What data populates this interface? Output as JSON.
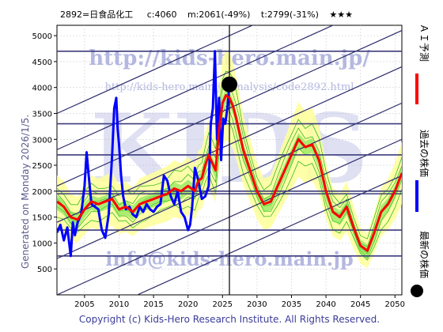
{
  "header": {
    "code_name": "2892=日食品化工",
    "current": "c:4060",
    "min": "m:2061(-49%)",
    "target": "t:2799(-31%)",
    "stars": "★★★"
  },
  "generated_label": "Generated on Monday 2026/1/5.",
  "watermark": {
    "url_top": "http://kids-hero.main.jp/",
    "url_mid": "http://kids-hero.main.jp/analysis/code2892.html",
    "big_text": "KIDS",
    "email": "info@kids-hero.main.jp"
  },
  "copyright": "Copyright (c) Kids-Hero Research Institute. All Rights Reserved.",
  "legend": {
    "ai_forecast": "ＡＩ予測",
    "past_price": "過去の株価",
    "latest_price": "最新の株価"
  },
  "colors": {
    "ai_forecast": "#ff0000",
    "past_price": "#0000ff",
    "band_fill": "#ffff99",
    "band_lines": "#00aa00",
    "green_fill": "#66dd44",
    "diagonal": "#2c2c6c",
    "horizontal": "#3c3c7c",
    "latest_marker": "#000000"
  },
  "chart_data": {
    "type": "line",
    "xlim": [
      2001,
      2051
    ],
    "ylim": [
      0,
      5200
    ],
    "x_ticks": [
      2005,
      2010,
      2015,
      2020,
      2025,
      2030,
      2035,
      2040,
      2045,
      2050
    ],
    "y_ticks": [
      500,
      1000,
      1500,
      2000,
      2500,
      3000,
      3500,
      4000,
      4500,
      5000
    ],
    "horizontal_levels": [
      4700,
      3300,
      2700,
      2000,
      1950,
      1250,
      750
    ],
    "current_year_line": 2026,
    "latest_point": {
      "x": 2026.0,
      "y": 4060
    },
    "series": [
      {
        "name": "過去の株価",
        "x": [
          2001,
          2001.5,
          2002,
          2002.5,
          2003,
          2003.3,
          2003.6,
          2004,
          2004.5,
          2005,
          2005.3,
          2005.6,
          2006,
          2006.5,
          2007,
          2007.5,
          2008,
          2008.5,
          2009,
          2009.3,
          2009.6,
          2009.8,
          2010,
          2010.3,
          2010.6,
          2011,
          2011.5,
          2012,
          2012.5,
          2013,
          2013.5,
          2014,
          2014.5,
          2015,
          2015.5,
          2016,
          2016.5,
          2017,
          2017.5,
          2018,
          2018.5,
          2019,
          2019.5,
          2020,
          2020.3,
          2020.6,
          2021,
          2021.5,
          2022,
          2022.5,
          2023,
          2023.3,
          2023.6,
          2023.9,
          2024.2,
          2024.5,
          2024.8,
          2025.1,
          2025.4,
          2025.7,
          2026
        ],
        "values": [
          1200,
          1350,
          1050,
          1300,
          750,
          1400,
          1150,
          1400,
          1550,
          2100,
          2750,
          2300,
          1750,
          1700,
          1650,
          1250,
          1100,
          1550,
          2700,
          3600,
          3800,
          3200,
          2900,
          2300,
          1900,
          1650,
          1700,
          1550,
          1500,
          1700,
          1600,
          1750,
          1650,
          1600,
          1700,
          1750,
          2300,
          2200,
          1900,
          1750,
          2000,
          1600,
          1500,
          1250,
          1350,
          1700,
          2450,
          2200,
          1850,
          1900,
          2100,
          3300,
          3600,
          4700,
          3000,
          3800,
          2600,
          3400,
          3300,
          3600,
          4060
        ]
      },
      {
        "name": "ＡＩ予測",
        "x": [
          2001,
          2002,
          2003,
          2004,
          2005,
          2006,
          2007,
          2008,
          2009,
          2010,
          2011,
          2012,
          2013,
          2014,
          2015,
          2016,
          2017,
          2018,
          2019,
          2020,
          2021,
          2021.5,
          2022,
          2022.5,
          2023,
          2023.5,
          2024,
          2024.5,
          2025,
          2025.5,
          2026,
          2026.5,
          2027,
          2027.5,
          2028,
          2029,
          2030,
          2031,
          2032,
          2033,
          2034,
          2035,
          2036,
          2037,
          2038,
          2039,
          2040,
          2041,
          2042,
          2043,
          2044,
          2045,
          2046,
          2047,
          2048,
          2049,
          2050,
          2051
        ],
        "values": [
          1800,
          1700,
          1500,
          1450,
          1650,
          1800,
          1750,
          1800,
          1850,
          1650,
          1700,
          1600,
          1750,
          1800,
          1850,
          1900,
          1950,
          2050,
          2000,
          2100,
          2000,
          2200,
          2250,
          2500,
          2700,
          2550,
          2400,
          3200,
          3700,
          3850,
          3800,
          3650,
          3400,
          3100,
          2800,
          2400,
          2000,
          1750,
          1800,
          2100,
          2400,
          2700,
          3000,
          2850,
          2900,
          2600,
          2000,
          1600,
          1500,
          1700,
          1300,
          950,
          850,
          1200,
          1600,
          1750,
          2000,
          2350
        ]
      }
    ]
  }
}
